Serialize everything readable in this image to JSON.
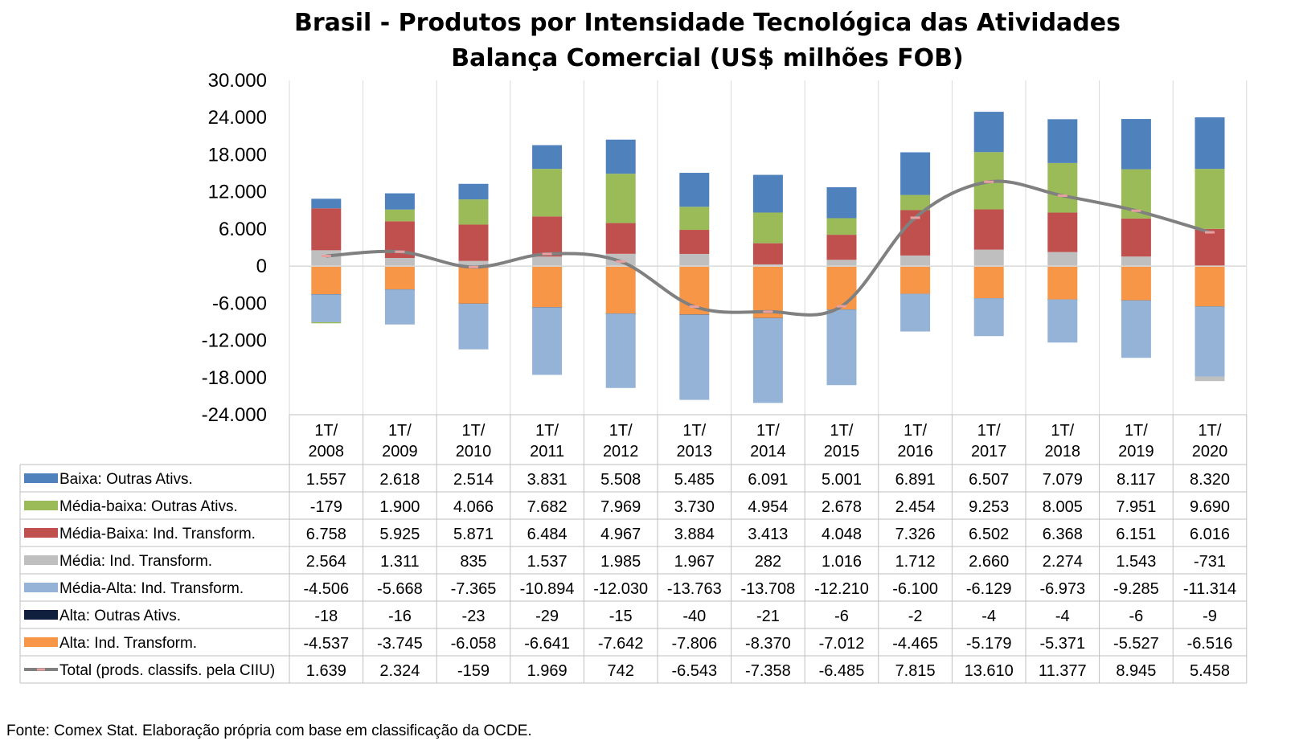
{
  "colors": {
    "baixa_outras": "#4F81BD",
    "media_baixa_outras": "#9BBB59",
    "media_baixa_ind": "#C0504D",
    "media_ind": "#BFBFBF",
    "media_alta_ind": "#95B3D7",
    "alta_outras": "#0F1F3D",
    "alta_ind": "#F79646",
    "total_line": "#808080",
    "total_marker": "#E6A0A0",
    "grid": "#D9D9D9"
  },
  "chart_data": {
    "type": "bar",
    "stacked": true,
    "title": "Brasil - Produtos por Intensidade Tecnológica das Atividades",
    "subtitle": "Balança Comercial (US$ milhões FOB)",
    "ylim": [
      -24000,
      30000
    ],
    "yticks": [
      "30.000",
      "24.000",
      "18.000",
      "12.000",
      "6.000",
      "0",
      "-6.000",
      "-12.000",
      "-18.000",
      "-24.000"
    ],
    "ytick_values": [
      30000,
      24000,
      18000,
      12000,
      6000,
      0,
      -6000,
      -12000,
      -18000,
      -24000
    ],
    "legend": "data-table",
    "grid": false,
    "categories": [
      [
        "1T/",
        "2008"
      ],
      [
        "1T/",
        "2009"
      ],
      [
        "1T/",
        "2010"
      ],
      [
        "1T/",
        "2011"
      ],
      [
        "1T/",
        "2012"
      ],
      [
        "1T/",
        "2013"
      ],
      [
        "1T/",
        "2014"
      ],
      [
        "1T/",
        "2015"
      ],
      [
        "1T/",
        "2016"
      ],
      [
        "1T/",
        "2017"
      ],
      [
        "1T/",
        "2018"
      ],
      [
        "1T/",
        "2019"
      ],
      [
        "1T/",
        "2020"
      ]
    ],
    "series": [
      {
        "name": "Baixa: Outras Ativs.",
        "color_key": "baixa_outras",
        "kind": "bar",
        "values": [
          1557,
          2618,
          2514,
          3831,
          5508,
          5485,
          6091,
          5001,
          6891,
          6507,
          7079,
          8117,
          8320
        ],
        "labels": [
          "1.557",
          "2.618",
          "2.514",
          "3.831",
          "5.508",
          "5.485",
          "6.091",
          "5.001",
          "6.891",
          "6.507",
          "7.079",
          "8.117",
          "8.320"
        ]
      },
      {
        "name": "Média-baixa: Outras Ativs.",
        "color_key": "media_baixa_outras",
        "kind": "bar",
        "values": [
          -179,
          1900,
          4066,
          7682,
          7969,
          3730,
          4954,
          2678,
          2454,
          9253,
          8005,
          7951,
          9690
        ],
        "labels": [
          "-179",
          "1.900",
          "4.066",
          "7.682",
          "7.969",
          "3.730",
          "4.954",
          "2.678",
          "2.454",
          "9.253",
          "8.005",
          "7.951",
          "9.690"
        ]
      },
      {
        "name": "Média-Baixa: Ind. Transform.",
        "color_key": "media_baixa_ind",
        "kind": "bar",
        "values": [
          6758,
          5925,
          5871,
          6484,
          4967,
          3884,
          3413,
          4048,
          7326,
          6502,
          6368,
          6151,
          6016
        ],
        "labels": [
          "6.758",
          "5.925",
          "5.871",
          "6.484",
          "4.967",
          "3.884",
          "3.413",
          "4.048",
          "7.326",
          "6.502",
          "6.368",
          "6.151",
          "6.016"
        ]
      },
      {
        "name": "Média: Ind. Transform.",
        "color_key": "media_ind",
        "kind": "bar",
        "values": [
          2564,
          1311,
          835,
          1537,
          1985,
          1967,
          282,
          1016,
          1712,
          2660,
          2274,
          1543,
          -731
        ],
        "labels": [
          "2.564",
          "1.311",
          "835",
          "1.537",
          "1.985",
          "1.967",
          "282",
          "1.016",
          "1.712",
          "2.660",
          "2.274",
          "1.543",
          "-731"
        ]
      },
      {
        "name": "Média-Alta: Ind. Transform.",
        "color_key": "media_alta_ind",
        "kind": "bar",
        "values": [
          -4506,
          -5668,
          -7365,
          -10894,
          -12030,
          -13763,
          -13708,
          -12210,
          -6100,
          -6129,
          -6973,
          -9285,
          -11314
        ],
        "labels": [
          "-4.506",
          "-5.668",
          "-7.365",
          "-10.894",
          "-12.030",
          "-13.763",
          "-13.708",
          "-12.210",
          "-6.100",
          "-6.129",
          "-6.973",
          "-9.285",
          "-11.314"
        ]
      },
      {
        "name": "Alta: Outras Ativs.",
        "color_key": "alta_outras",
        "kind": "bar",
        "values": [
          -18,
          -16,
          -23,
          -29,
          -15,
          -40,
          -21,
          -6,
          -2,
          -4,
          -4,
          -6,
          -9
        ],
        "labels": [
          "-18",
          "-16",
          "-23",
          "-29",
          "-15",
          "-40",
          "-21",
          "-6",
          "-2",
          "-4",
          "-4",
          "-6",
          "-9"
        ]
      },
      {
        "name": "Alta: Ind. Transform.",
        "color_key": "alta_ind",
        "kind": "bar",
        "values": [
          -4537,
          -3745,
          -6058,
          -6641,
          -7642,
          -7806,
          -8370,
          -7012,
          -4465,
          -5179,
          -5371,
          -5527,
          -6516
        ],
        "labels": [
          "-4.537",
          "-3.745",
          "-6.058",
          "-6.641",
          "-7.642",
          "-7.806",
          "-8.370",
          "-7.012",
          "-4.465",
          "-5.179",
          "-5.371",
          "-5.527",
          "-6.516"
        ]
      },
      {
        "name": "Total (prods. classifs. pela CIIU)",
        "color_key": "total_line",
        "kind": "line",
        "values": [
          1639,
          2324,
          -159,
          1969,
          742,
          -6543,
          -7358,
          -6485,
          7815,
          13610,
          11377,
          8945,
          5458
        ],
        "labels": [
          "1.639",
          "2.324",
          "-159",
          "1.969",
          "742",
          "-6.543",
          "-7.358",
          "-6.485",
          "7.815",
          "13.610",
          "11.377",
          "8.945",
          "5.458"
        ]
      }
    ],
    "stack_order_positive": [
      "media_ind",
      "media_baixa_ind",
      "media_baixa_outras",
      "baixa_outras"
    ],
    "stack_order_negative": [
      "alta_ind",
      "alta_outras",
      "media_alta_ind",
      "media_ind",
      "media_baixa_outras"
    ]
  },
  "source": "Fonte: Comex Stat. Elaboração própria com base em classificação da OCDE."
}
